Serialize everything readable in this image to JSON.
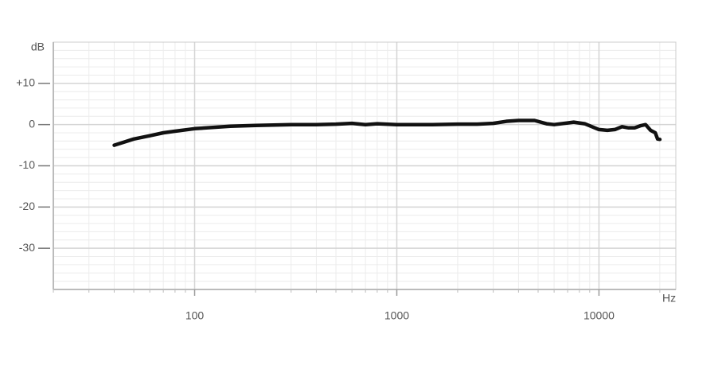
{
  "chart_data": {
    "type": "line",
    "y_unit_label": "dB",
    "x_unit_label": "Hz",
    "log_x": true,
    "grid": true,
    "color": "#111111",
    "xlim": [
      20,
      24000
    ],
    "ylim": [
      -40,
      20
    ],
    "xticks": [
      100,
      1000,
      10000
    ],
    "yticks": [
      {
        "value": 10,
        "label": "+10"
      },
      0,
      -10,
      -20,
      -30
    ],
    "xminorticks": [
      20,
      30,
      40,
      50,
      60,
      70,
      80,
      90,
      200,
      300,
      400,
      500,
      600,
      700,
      800,
      900,
      2000,
      3000,
      4000,
      5000,
      6000,
      7000,
      8000,
      9000,
      20000
    ],
    "yminorticks": [
      -38,
      -36,
      -34,
      -32,
      -28,
      -26,
      -24,
      -22,
      -18,
      -16,
      -14,
      -12,
      -8,
      -6,
      -4,
      -2,
      2,
      4,
      6,
      8,
      12,
      14,
      16,
      18
    ],
    "x": [
      40,
      50,
      60,
      70,
      80,
      100,
      150,
      200,
      300,
      400,
      500,
      600,
      700,
      800,
      1000,
      1500,
      2000,
      2500,
      3000,
      3500,
      4000,
      4800,
      5500,
      6000,
      7000,
      7500,
      8500,
      10000,
      11000,
      12000,
      13000,
      14000,
      15000,
      16000,
      17000,
      18000,
      19000,
      19500,
      20000
    ],
    "values": [
      -5,
      -3.5,
      -2.7,
      -2,
      -1.6,
      -1,
      -0.4,
      -0.2,
      0,
      0,
      0.1,
      0.3,
      0,
      0.2,
      0,
      0,
      0.1,
      0.1,
      0.3,
      0.8,
      1,
      1,
      0.2,
      0,
      0.4,
      0.6,
      0.2,
      -1.2,
      -1.4,
      -1.2,
      -0.5,
      -0.8,
      -0.8,
      -0.3,
      0,
      -1.4,
      -2,
      -3.5,
      -3.6
    ]
  }
}
